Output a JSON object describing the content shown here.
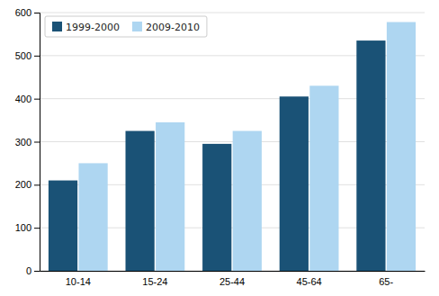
{
  "chart_data": {
    "type": "bar",
    "categories": [
      "10-14",
      "15-24",
      "25-44",
      "45-64",
      "65-"
    ],
    "series": [
      {
        "name": "1999-2000",
        "color": "#1a5276",
        "values": [
          210,
          325,
          295,
          405,
          535
        ]
      },
      {
        "name": "2009-2010",
        "color": "#aed6f1",
        "values": [
          250,
          345,
          325,
          430,
          578
        ]
      }
    ],
    "ylim": [
      0,
      600
    ],
    "yticks": [
      0,
      100,
      200,
      300,
      400,
      500,
      600
    ],
    "grid": true,
    "legend": "upper left"
  }
}
